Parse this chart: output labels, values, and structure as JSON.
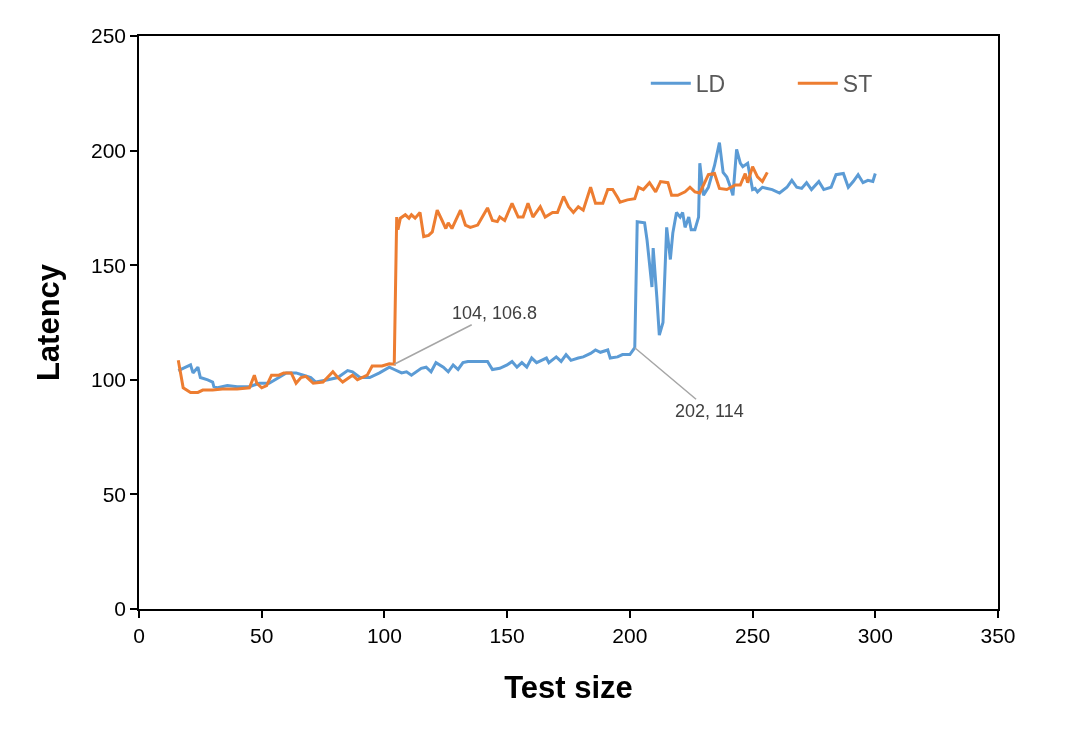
{
  "chart_data": {
    "type": "line",
    "xlabel": "Test size",
    "ylabel": "Latency",
    "xlim": [
      0,
      350
    ],
    "xticks": [
      0,
      50,
      100,
      150,
      200,
      250,
      300,
      350
    ],
    "ylim": [
      0,
      250
    ],
    "yticks": [
      0,
      50,
      100,
      150,
      200,
      250
    ],
    "grid": false,
    "legend": "top right",
    "marker": "none",
    "line_style": "solid",
    "annotations": [
      {
        "text": "104, 106.8",
        "x": 104,
        "y": 106.8
      },
      {
        "text": "202, 114",
        "x": 202,
        "y": 114
      }
    ],
    "series": [
      {
        "name": "LD",
        "color": "#5b9bd5",
        "x": [
          16,
          21,
          22,
          24,
          25,
          28,
          30,
          30.5,
          32,
          36,
          40,
          45,
          49,
          53,
          57,
          60,
          64,
          67,
          70,
          72,
          77,
          81,
          85,
          87,
          90,
          94,
          98,
          102,
          104,
          107,
          109,
          111,
          115,
          117,
          119,
          121,
          124,
          126,
          128,
          130,
          132,
          134,
          139,
          142,
          144,
          147,
          150,
          152,
          154,
          156,
          158,
          160,
          162,
          164,
          166,
          167,
          170,
          172,
          174,
          176,
          179,
          181,
          184,
          186,
          188,
          191,
          192,
          195,
          197,
          200,
          202,
          203,
          206,
          207,
          209,
          209.5,
          211,
          212,
          213.5,
          215,
          216.5,
          217.5,
          219,
          220.5,
          221.5,
          222.5,
          224,
          225,
          226.5,
          228,
          228.5,
          230,
          232,
          234.5,
          236.5,
          238,
          239.5,
          241,
          242,
          243.5,
          245,
          246,
          248,
          250,
          251,
          252,
          254,
          256,
          258,
          261,
          264,
          266,
          268,
          270,
          272,
          274,
          277,
          279,
          282,
          284,
          287,
          289,
          291,
          293,
          295,
          297,
          299,
          300
        ],
        "values": [
          104,
          106.5,
          103,
          105.5,
          101,
          100,
          99,
          97,
          96.5,
          97.5,
          97,
          97,
          98.5,
          98.5,
          101,
          103,
          103,
          102,
          101,
          99,
          100,
          101,
          104,
          103.5,
          101,
          101,
          103,
          105.5,
          104.5,
          103,
          103.5,
          102,
          105,
          105.5,
          103.5,
          107.5,
          105.5,
          103.5,
          106.5,
          104.5,
          107.5,
          108,
          108,
          108,
          104.5,
          105,
          106.5,
          108,
          105.5,
          107.5,
          105.5,
          109.5,
          107.5,
          108.5,
          109.5,
          107.5,
          110,
          108,
          111,
          108.5,
          109.5,
          110,
          111.5,
          113,
          112,
          113,
          109.5,
          110,
          111,
          111,
          114,
          169,
          168.5,
          161,
          140.5,
          157.5,
          136,
          119.5,
          125,
          166.5,
          152.5,
          164,
          173,
          171,
          173,
          166.5,
          171,
          165.5,
          165.5,
          171,
          194.5,
          180.5,
          184,
          193.5,
          203.5,
          190.5,
          188.5,
          184,
          180.5,
          200.5,
          194.5,
          193,
          194.5,
          183,
          183.5,
          182,
          184,
          183.5,
          183,
          181.5,
          184,
          187,
          184,
          183.5,
          186,
          183,
          186.5,
          183,
          184,
          189.5,
          190,
          184,
          186.5,
          189.5,
          186,
          187,
          186.5,
          190
        ]
      },
      {
        "name": "ST",
        "color": "#ed7d31",
        "x": [
          16,
          18,
          21,
          24,
          26,
          30,
          34,
          40,
          45,
          47,
          48,
          50,
          52,
          54,
          57,
          59,
          62,
          64,
          66,
          68,
          71,
          75,
          79,
          81,
          83,
          87,
          89,
          93,
          95,
          99,
          102,
          104,
          105,
          105.5,
          106.5,
          108.5,
          110,
          111,
          112.5,
          114.5,
          116,
          118,
          119.5,
          121.5,
          123.5,
          125,
          126,
          127.5,
          129,
          131,
          133,
          135,
          138,
          142,
          144,
          146,
          147,
          149,
          152,
          154.5,
          156.5,
          158.5,
          160.5,
          163.5,
          165.5,
          168.5,
          170.5,
          173,
          175,
          177,
          179,
          181,
          184,
          186,
          189,
          191,
          193,
          195,
          196,
          199,
          202,
          203.5,
          205.5,
          208,
          210.5,
          212.5,
          215.5,
          217,
          219.5,
          222.5,
          224.5,
          226.5,
          228.5,
          232,
          234.5,
          236.5,
          239.5,
          243,
          245,
          247,
          248,
          250,
          252,
          254,
          256
        ],
        "values": [
          108.5,
          96.5,
          94.5,
          94.5,
          95.5,
          95.5,
          96,
          96,
          96.5,
          102,
          98.5,
          96.5,
          97.5,
          102,
          102,
          103,
          103,
          98.5,
          101,
          101.5,
          98.5,
          99,
          103.5,
          101,
          99,
          102,
          100,
          102,
          106,
          106,
          107,
          106.8,
          171,
          165.5,
          170.5,
          172,
          170.5,
          172,
          170.5,
          173,
          162.5,
          163,
          164.5,
          174,
          169.5,
          166,
          168.5,
          166,
          169.5,
          174,
          167.5,
          166.5,
          167.5,
          175,
          169.5,
          169,
          171,
          169.5,
          177,
          171,
          171,
          177,
          171,
          175.5,
          171,
          173,
          173,
          180,
          175.5,
          173,
          175.5,
          174,
          184,
          177,
          177,
          183,
          183,
          179.5,
          177.5,
          178.5,
          179,
          184,
          183,
          186,
          182,
          186.5,
          186,
          180.5,
          180.5,
          182,
          184,
          182,
          181.5,
          189.5,
          190,
          183.5,
          183,
          185,
          185,
          190,
          186,
          193,
          188.5,
          186.5,
          190.5
        ]
      }
    ]
  }
}
